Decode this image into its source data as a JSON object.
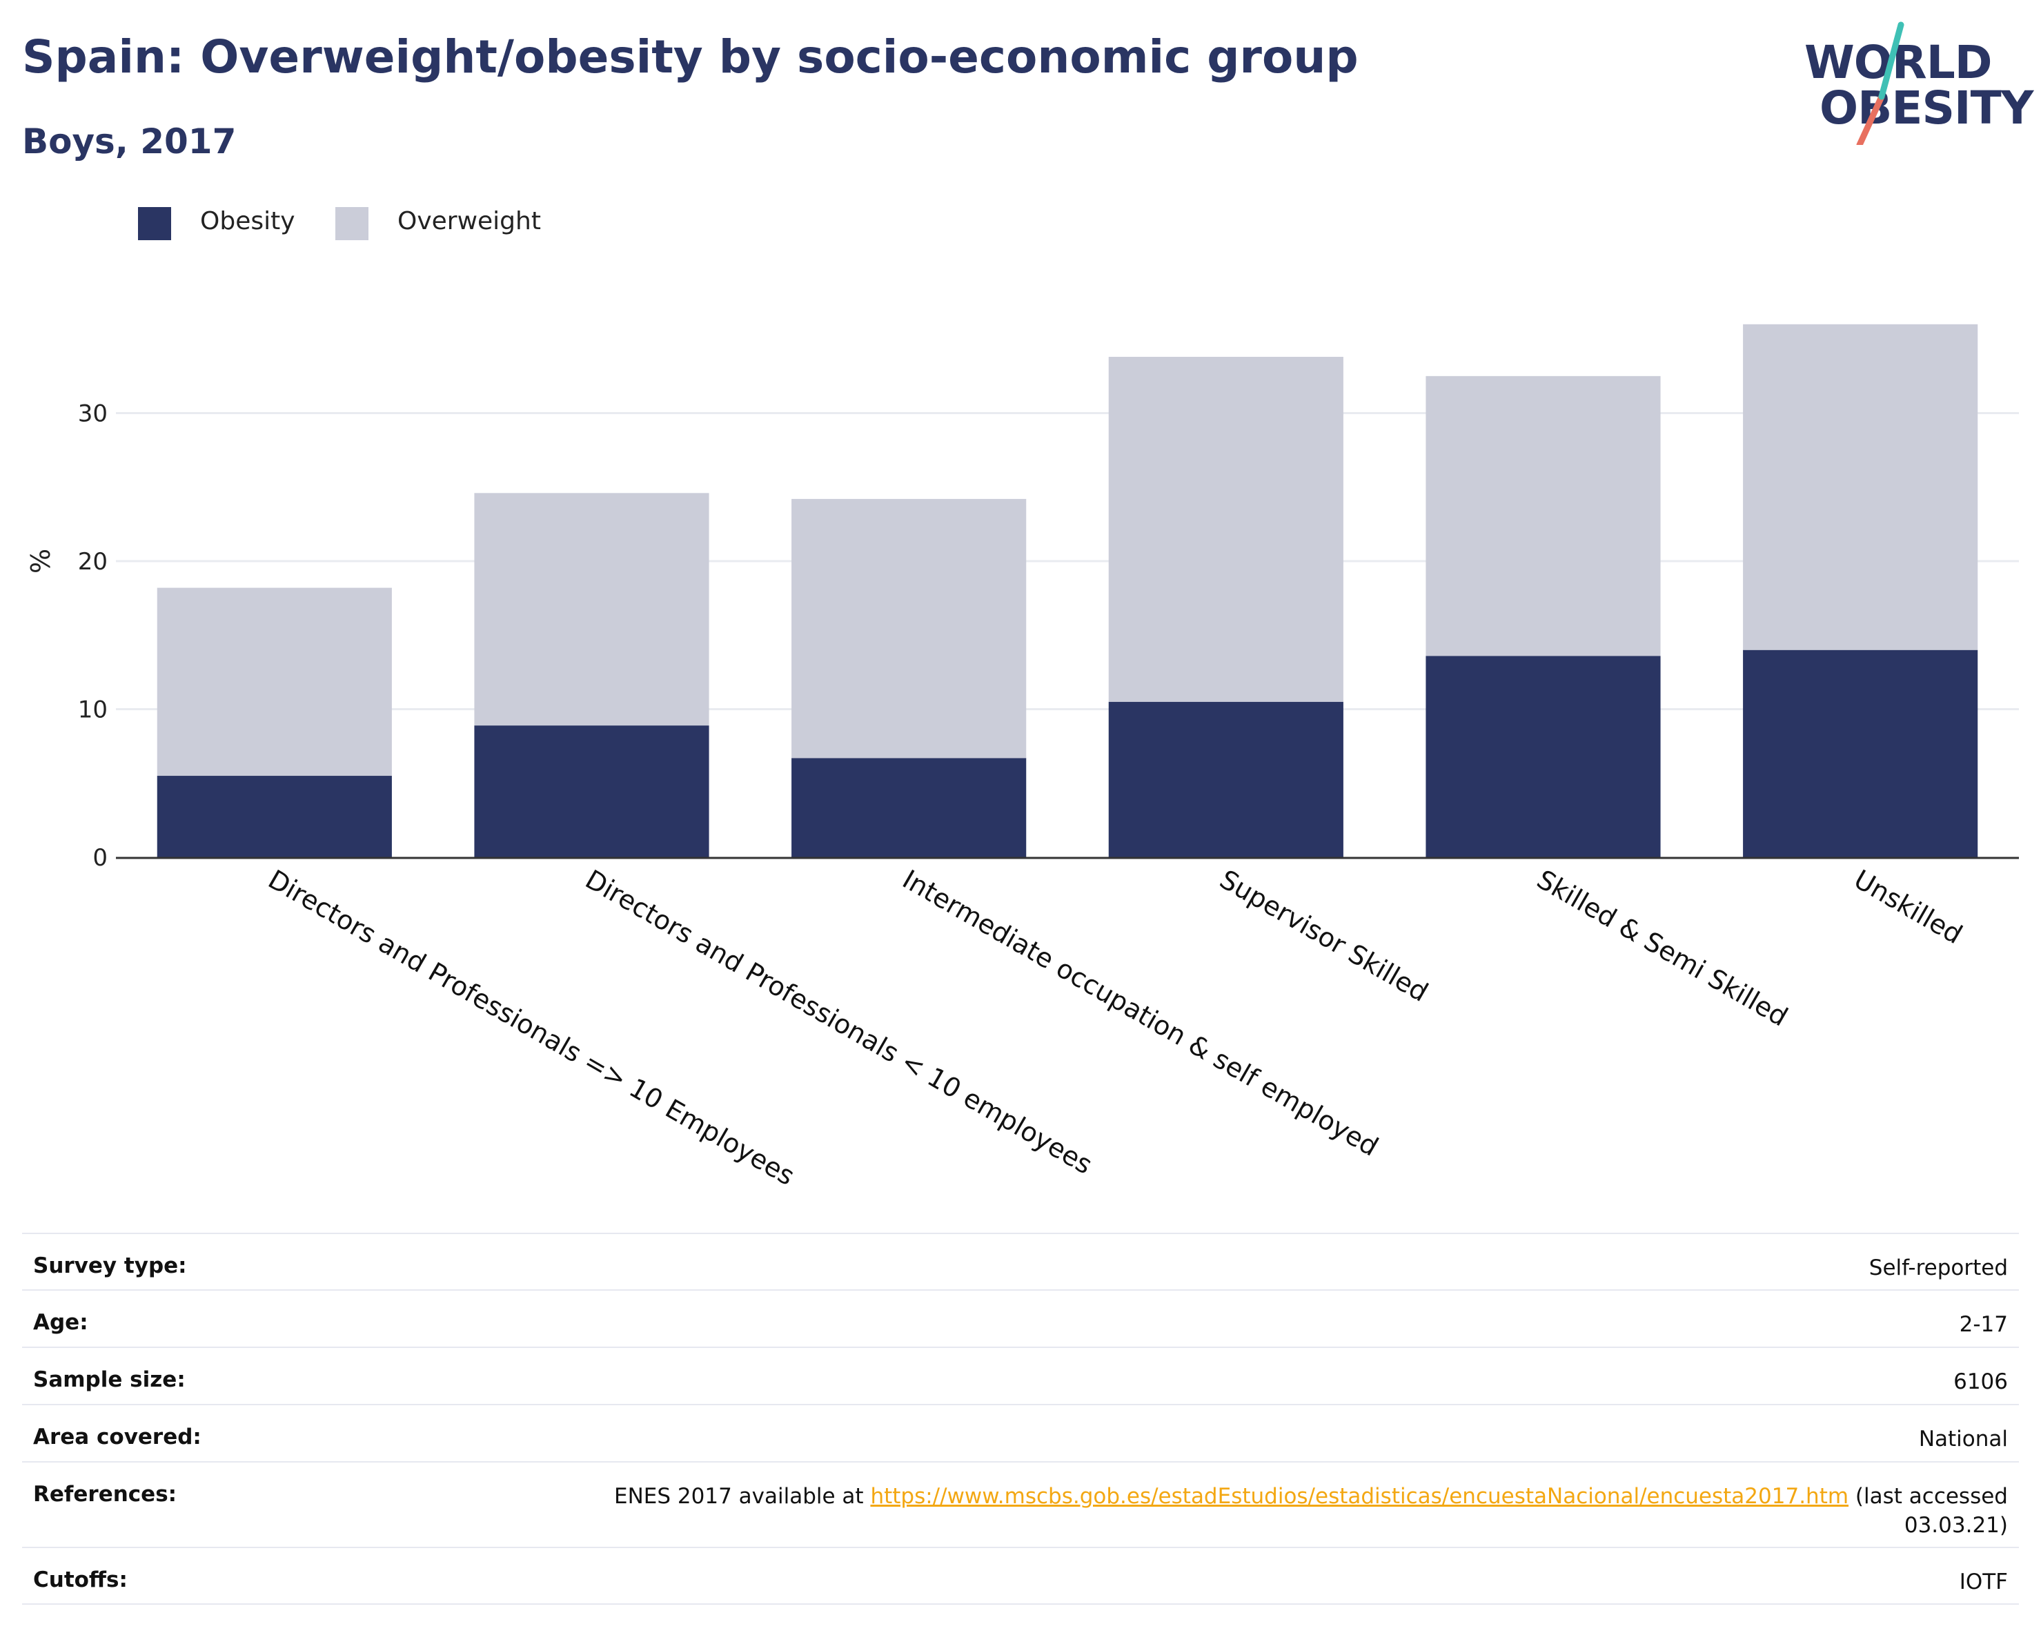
{
  "title": "Spain: Overweight/obesity by socio-economic group",
  "subtitle": "Boys, 2017",
  "logo": {
    "line1": "WORLD",
    "line2": "OBESITY"
  },
  "colors": {
    "obesity": "#2a3563",
    "overweight": "#cbcdd9",
    "axis": "#333333",
    "grid": "#e9ebf0",
    "link": "#f3a712"
  },
  "chart_data": {
    "type": "bar",
    "stacked": true,
    "categories": [
      "Directors and Professionals => 10 Employees",
      "Directors and Professionals < 10 employees",
      "Intermediate occupation & self employed",
      "Supervisor Skilled",
      "Skilled & Semi Skilled",
      "Unskilled"
    ],
    "series": [
      {
        "name": "Obesity",
        "values": [
          5.5,
          8.9,
          6.7,
          10.5,
          13.6,
          14.0
        ]
      },
      {
        "name": "Overweight",
        "values": [
          12.7,
          15.7,
          17.5,
          23.3,
          18.9,
          22.0
        ]
      }
    ],
    "ylabel": "%",
    "yticks": [
      0,
      10,
      20,
      30
    ],
    "ylim": [
      0,
      38
    ],
    "grid": true,
    "legend": "top-left"
  },
  "info": {
    "rows": [
      {
        "label": "Survey type:",
        "value": "Self-reported"
      },
      {
        "label": "Age:",
        "value": "2-17"
      },
      {
        "label": "Sample size:",
        "value": "6106"
      },
      {
        "label": "Area covered:",
        "value": "National"
      },
      {
        "label": "References:",
        "value_prefix": "ENES 2017 available at ",
        "link": "https://www.mscbs.gob.es/estadEstudios/estadisticas/encuestaNacional/encuesta2017.htm",
        "value_suffix": " (last accessed",
        "value_line2": "03.03.21)"
      },
      {
        "label": "Cutoffs:",
        "value": "IOTF"
      }
    ]
  }
}
